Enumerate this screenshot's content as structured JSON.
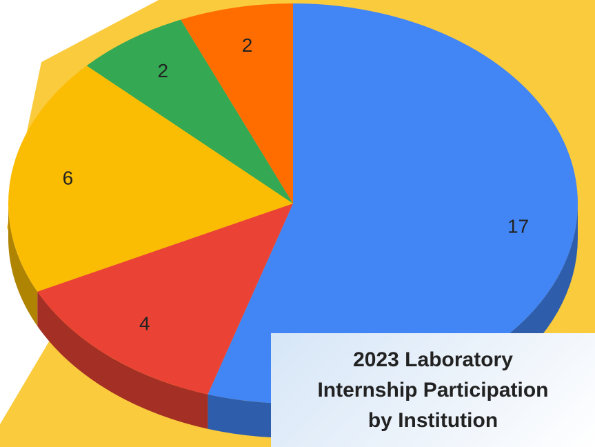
{
  "chart_data": {
    "type": "pie3d",
    "title": [
      "2023 Laboratory",
      "Internship Participation",
      "by Institution"
    ],
    "values": [
      17,
      4,
      6,
      2,
      2
    ],
    "colors": [
      "#4285f4",
      "#ea4335",
      "#fbbc04",
      "#34a853",
      "#ff6d01"
    ]
  }
}
